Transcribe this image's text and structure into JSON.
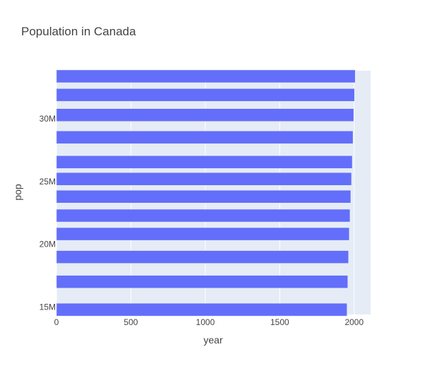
{
  "chart_data": {
    "type": "bar",
    "orientation": "horizontal",
    "title": "Population in Canada",
    "xlabel": "year",
    "ylabel": "pop",
    "xlim": [
      0,
      2110
    ],
    "ylim": [
      14400000,
      33840000
    ],
    "x_ticks": [
      0,
      500,
      1000,
      1500,
      2000
    ],
    "x_tick_labels": [
      "0",
      "500",
      "1000",
      "1500",
      "2000"
    ],
    "y_ticks": [
      15000000,
      20000000,
      25000000,
      30000000
    ],
    "y_tick_labels": [
      "15M",
      "20M",
      "25M",
      "30M"
    ],
    "grid": true,
    "legend": "none",
    "bar_color": "#636efa",
    "plot_bg": "#e5ecf6",
    "bars": [
      {
        "year": 1952,
        "pop": 14785584
      },
      {
        "year": 1957,
        "pop": 17010154
      },
      {
        "year": 1962,
        "pop": 18985849
      },
      {
        "year": 1967,
        "pop": 20819767
      },
      {
        "year": 1972,
        "pop": 22284500
      },
      {
        "year": 1977,
        "pop": 23796400
      },
      {
        "year": 1982,
        "pop": 25201900
      },
      {
        "year": 1987,
        "pop": 26549700
      },
      {
        "year": 1992,
        "pop": 28523502
      },
      {
        "year": 1997,
        "pop": 30305843
      },
      {
        "year": 2002,
        "pop": 31902268
      },
      {
        "year": 2007,
        "pop": 33390141
      }
    ]
  }
}
